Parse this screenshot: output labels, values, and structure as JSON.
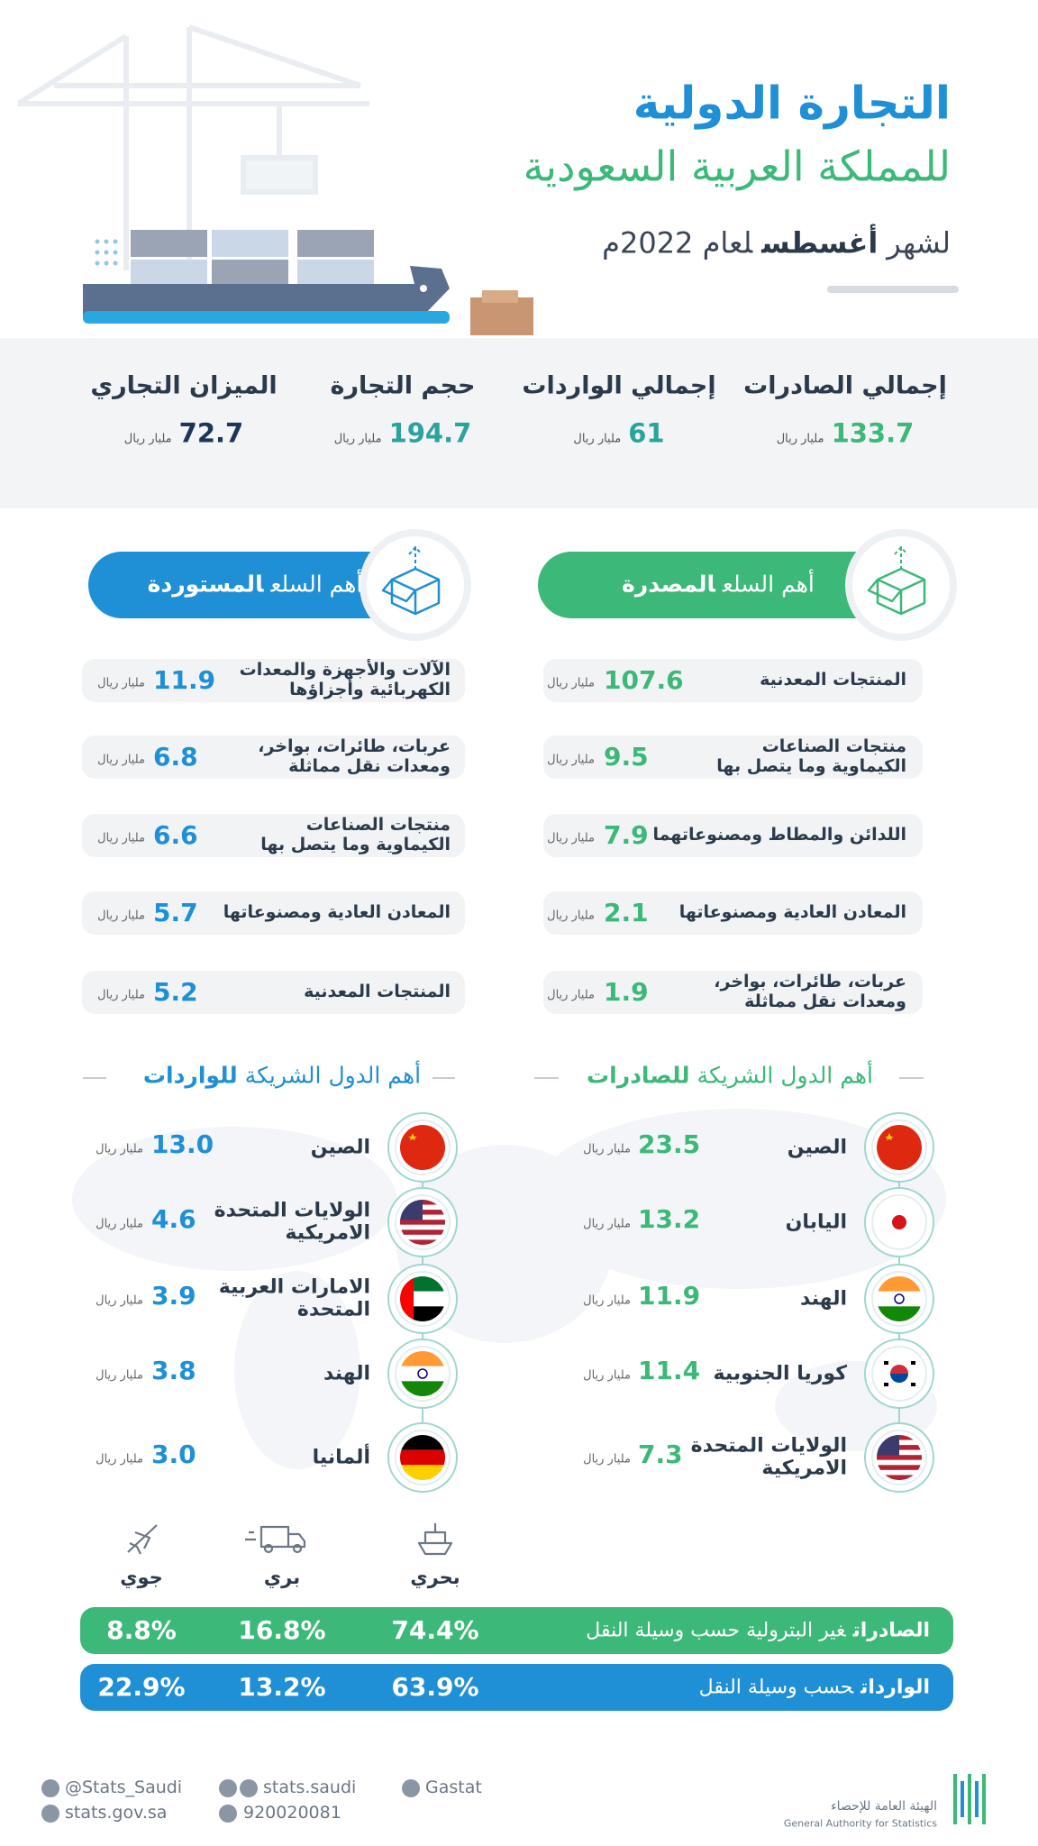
{
  "header": {
    "title_line1": "التجارة الدولية",
    "title_line2": "للمملكة العربية السعودية",
    "period_prefix": "لشهر",
    "period_month": "أغسطس",
    "period_suffix": "لعام 2022م"
  },
  "unit": "مليار ريال",
  "summary": [
    {
      "label": "إجمالي الصادرات",
      "value": "133.7"
    },
    {
      "label": "إجمالي الواردات",
      "value": "61"
    },
    {
      "label": "حجم التجارة",
      "value": "194.7"
    },
    {
      "label": "الميزان التجاري",
      "value": "72.7"
    }
  ],
  "top_goods": {
    "exports": {
      "title_regular": "أهم السلع",
      "title_bold": "المصدرة",
      "items": [
        {
          "label": [
            "المنتجات المعدنية"
          ],
          "value": "107.6"
        },
        {
          "label": [
            "منتجات الصناعات",
            "الكيماوية وما يتصل بها"
          ],
          "value": "9.5"
        },
        {
          "label": [
            "اللدائن والمطاط ومصنوعاتهما"
          ],
          "value": "7.9"
        },
        {
          "label": [
            "المعادن العادية ومصنوعاتها"
          ],
          "value": "2.1"
        },
        {
          "label": [
            "عربات، طائرات، بواخر،",
            "ومعدات نقل مماثلة"
          ],
          "value": "1.9"
        }
      ]
    },
    "imports": {
      "title_regular": "أهم السلع",
      "title_bold": "المستوردة",
      "items": [
        {
          "label": [
            "الآلات والأجهزة والمعدات",
            "الكهربائية وأجزاؤها"
          ],
          "value": "11.9"
        },
        {
          "label": [
            "عربات، طائرات، بواخر،",
            "ومعدات نقل مماثلة"
          ],
          "value": "6.8"
        },
        {
          "label": [
            "منتجات الصناعات",
            "الكيماوية وما يتصل بها"
          ],
          "value": "6.6"
        },
        {
          "label": [
            "المعادن العادية ومصنوعاتها"
          ],
          "value": "5.7"
        },
        {
          "label": [
            "المنتجات المعدنية"
          ],
          "value": "5.2"
        }
      ]
    }
  },
  "partners": {
    "exports": {
      "title_regular": "أهم الدول الشريكة",
      "title_bold": "للصادرات",
      "items": [
        {
          "name": [
            "الصين"
          ],
          "value": "23.5"
        },
        {
          "name": [
            "اليابان"
          ],
          "value": "13.2"
        },
        {
          "name": [
            "الهند"
          ],
          "value": "11.9"
        },
        {
          "name": [
            "كوريا الجنوبية"
          ],
          "value": "11.4"
        },
        {
          "name": [
            "الولايات المتحدة",
            "الامريكية"
          ],
          "value": "7.3"
        }
      ]
    },
    "imports": {
      "title_regular": "أهم الدول الشريكة",
      "title_bold": "للواردات",
      "items": [
        {
          "name": [
            "الصين"
          ],
          "value": "13.0"
        },
        {
          "name": [
            "الولايات المتحدة",
            "الامريكية"
          ],
          "value": "4.6"
        },
        {
          "name": [
            "الامارات العربية",
            "المتحدة"
          ],
          "value": "3.9"
        },
        {
          "name": [
            "الهند"
          ],
          "value": "3.8"
        },
        {
          "name": [
            "ألمانيا"
          ],
          "value": "3.0"
        }
      ]
    }
  },
  "transport": {
    "modes": [
      "بحري",
      "بري",
      "جوي"
    ],
    "rows": [
      {
        "title_bold": "الصادرات",
        "title_rest": "غير البترولية حسب وسيلة النقل",
        "values": [
          "74.4%",
          "16.8%",
          "8.8%"
        ]
      },
      {
        "title_bold": "الواردات",
        "title_rest": "حسب وسيلة النقل",
        "values": [
          "63.9%",
          "13.2%",
          "22.9%"
        ]
      }
    ]
  },
  "footer": {
    "twitter": "@Stats_Saudi",
    "website": "stats.gov.sa",
    "social": "stats.saudi",
    "phone": "920020081",
    "linkedin": "Gastat",
    "org_ar": "الهيئة العامة للإحصاء",
    "org_en": "General Authority for Statistics"
  }
}
